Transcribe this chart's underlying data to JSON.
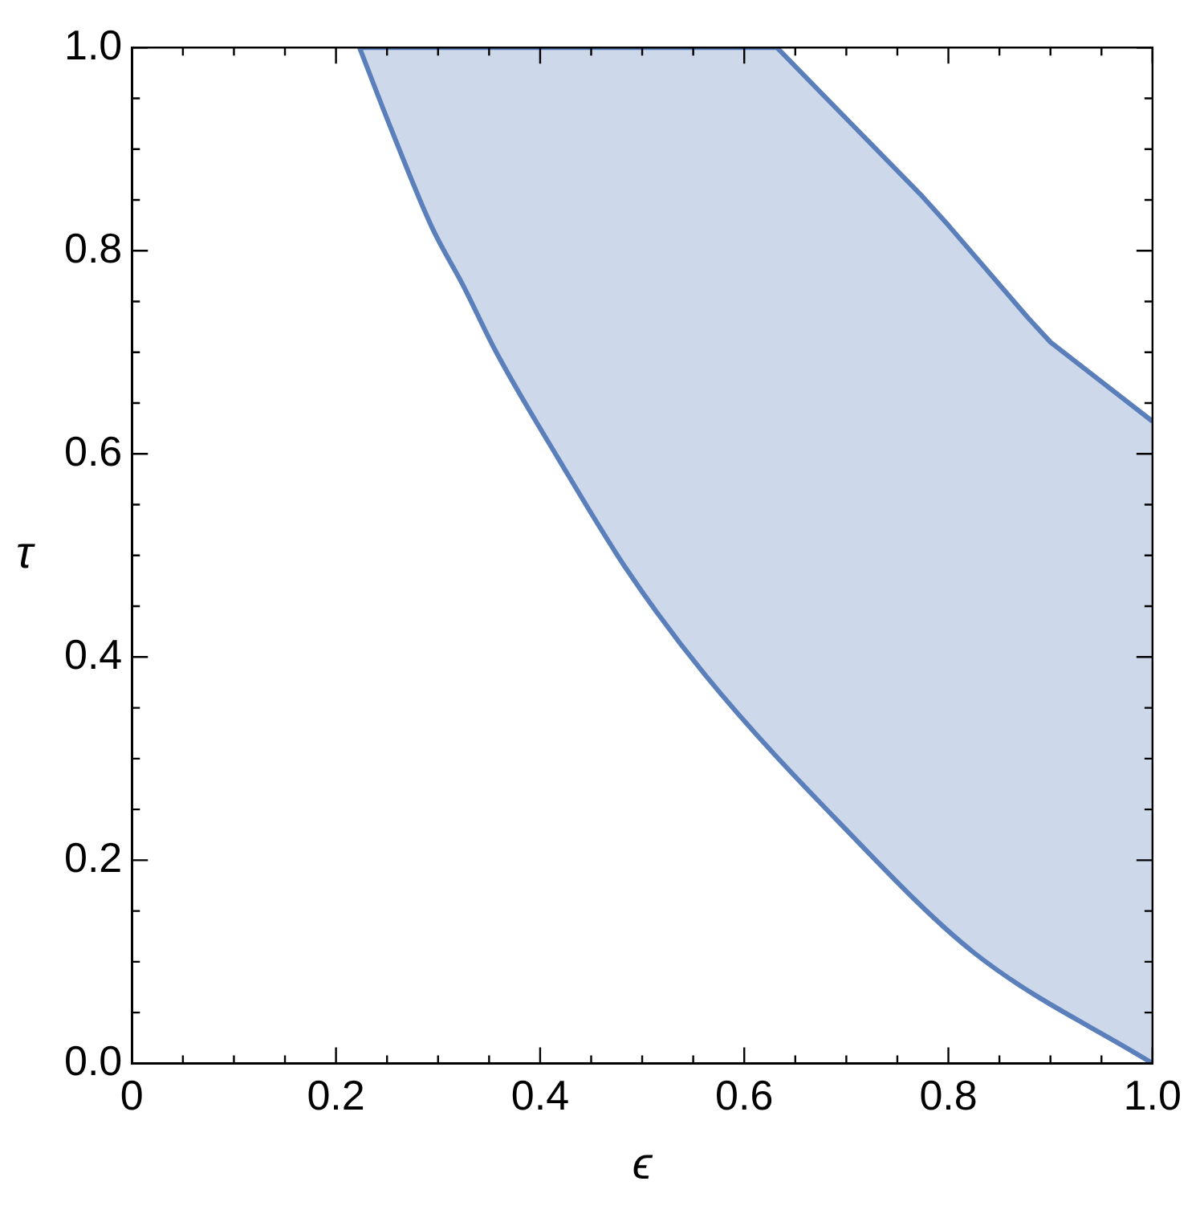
{
  "chart_data": {
    "type": "line",
    "xlabel": "ϵ",
    "ylabel": "τ",
    "xlim": [
      0,
      1
    ],
    "ylim": [
      0,
      1
    ],
    "xticks": [
      0,
      {
        "value": 0.05,
        "label": null
      },
      {
        "value": 0.1,
        "label": null
      },
      {
        "value": 0.15,
        "label": null
      },
      {
        "value": 0.2,
        "label": "0.2"
      },
      {
        "value": 0.25,
        "label": null
      },
      {
        "value": 0.3,
        "label": null
      },
      {
        "value": 0.35,
        "label": null
      },
      {
        "value": 0.4,
        "label": "0.4"
      },
      {
        "value": 0.45,
        "label": null
      },
      {
        "value": 0.5,
        "label": null
      },
      {
        "value": 0.55,
        "label": null
      },
      {
        "value": 0.6,
        "label": "0.6"
      },
      {
        "value": 0.65,
        "label": null
      },
      {
        "value": 0.7,
        "label": null
      },
      {
        "value": 0.75,
        "label": null
      },
      {
        "value": 0.8,
        "label": "0.8"
      },
      {
        "value": 0.85,
        "label": null
      },
      {
        "value": 0.9,
        "label": null
      },
      {
        "value": 0.95,
        "label": null
      },
      {
        "value": 1,
        "label": "1.0"
      }
    ],
    "yticks": [
      {
        "value": 0,
        "label": "0.0"
      },
      {
        "value": 0.05,
        "label": null
      },
      {
        "value": 0.1,
        "label": null
      },
      {
        "value": 0.15,
        "label": null
      },
      {
        "value": 0.2,
        "label": "0.2"
      },
      {
        "value": 0.25,
        "label": null
      },
      {
        "value": 0.3,
        "label": null
      },
      {
        "value": 0.35,
        "label": null
      },
      {
        "value": 0.4,
        "label": "0.4"
      },
      {
        "value": 0.45,
        "label": null
      },
      {
        "value": 0.5,
        "label": null
      },
      {
        "value": 0.55,
        "label": null
      },
      {
        "value": 0.6,
        "label": "0.6"
      },
      {
        "value": 0.65,
        "label": null
      },
      {
        "value": 0.7,
        "label": null
      },
      {
        "value": 0.75,
        "label": null
      },
      {
        "value": 0.8,
        "label": "0.8"
      },
      {
        "value": 0.85,
        "label": null
      },
      {
        "value": 0.9,
        "label": null
      },
      {
        "value": 0.95,
        "label": null
      },
      {
        "value": 1,
        "label": "1.0"
      }
    ],
    "grid": false,
    "legend": false,
    "marker": "none",
    "line_style": "solid",
    "series": [
      {
        "type": "line",
        "color": "#5b7fbb",
        "x": [
          0.223,
          0.252,
          0.294,
          0.325,
          0.356,
          0.418,
          0.485,
          0.562,
          0.697,
          0.825,
          1
        ],
        "values": [
          1,
          0.925,
          0.823,
          0.765,
          0.702,
          0.595,
          0.486,
          0.382,
          0.233,
          0.109,
          0
        ]
      },
      {
        "type": "line",
        "color": "#5b7fbb",
        "x": [
          0.223,
          0.25,
          0.3,
          0.35,
          0.4,
          0.45,
          0.5,
          0.55,
          0.6,
          0.632,
          0.7,
          0.774,
          0.8,
          0.878,
          0.9,
          1
        ],
        "values": [
          1,
          1,
          1,
          1,
          1,
          1,
          1,
          1,
          1,
          1,
          0.93,
          0.854,
          0.825,
          0.734,
          0.71,
          0.632
        ],
        "lower": [
          1,
          0.93,
          0.81,
          0.71,
          0.625,
          0.54,
          0.465,
          0.398,
          0.336,
          0.3,
          0.23,
          0.156,
          0.132,
          0.07,
          0.055,
          0
        ],
        "upper": [
          1,
          1,
          1,
          1,
          1,
          1,
          1,
          1,
          1,
          1,
          0.93,
          0.854,
          0.825,
          0.734,
          0.71,
          0.632
        ]
      }
    ]
  }
}
